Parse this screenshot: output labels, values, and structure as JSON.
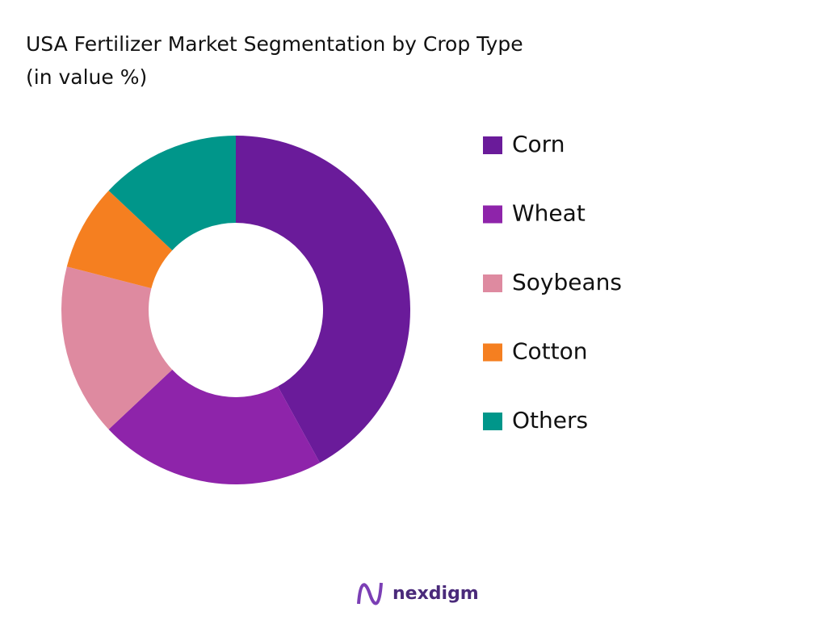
{
  "chart_data": {
    "type": "donut",
    "title": "USA Fertilizer Market Segmentation by Crop Type",
    "subtitle": "(in value %)",
    "categories": [
      "Corn",
      "Wheat",
      "Soybeans",
      "Cotton",
      "Others"
    ],
    "values": [
      42,
      21,
      16,
      8,
      13
    ],
    "colors": [
      "#6a1b9a",
      "#8e24aa",
      "#de8aa0",
      "#f57f20",
      "#00968a"
    ],
    "legend": "right"
  },
  "footer": {
    "logo": "nexdigm"
  }
}
